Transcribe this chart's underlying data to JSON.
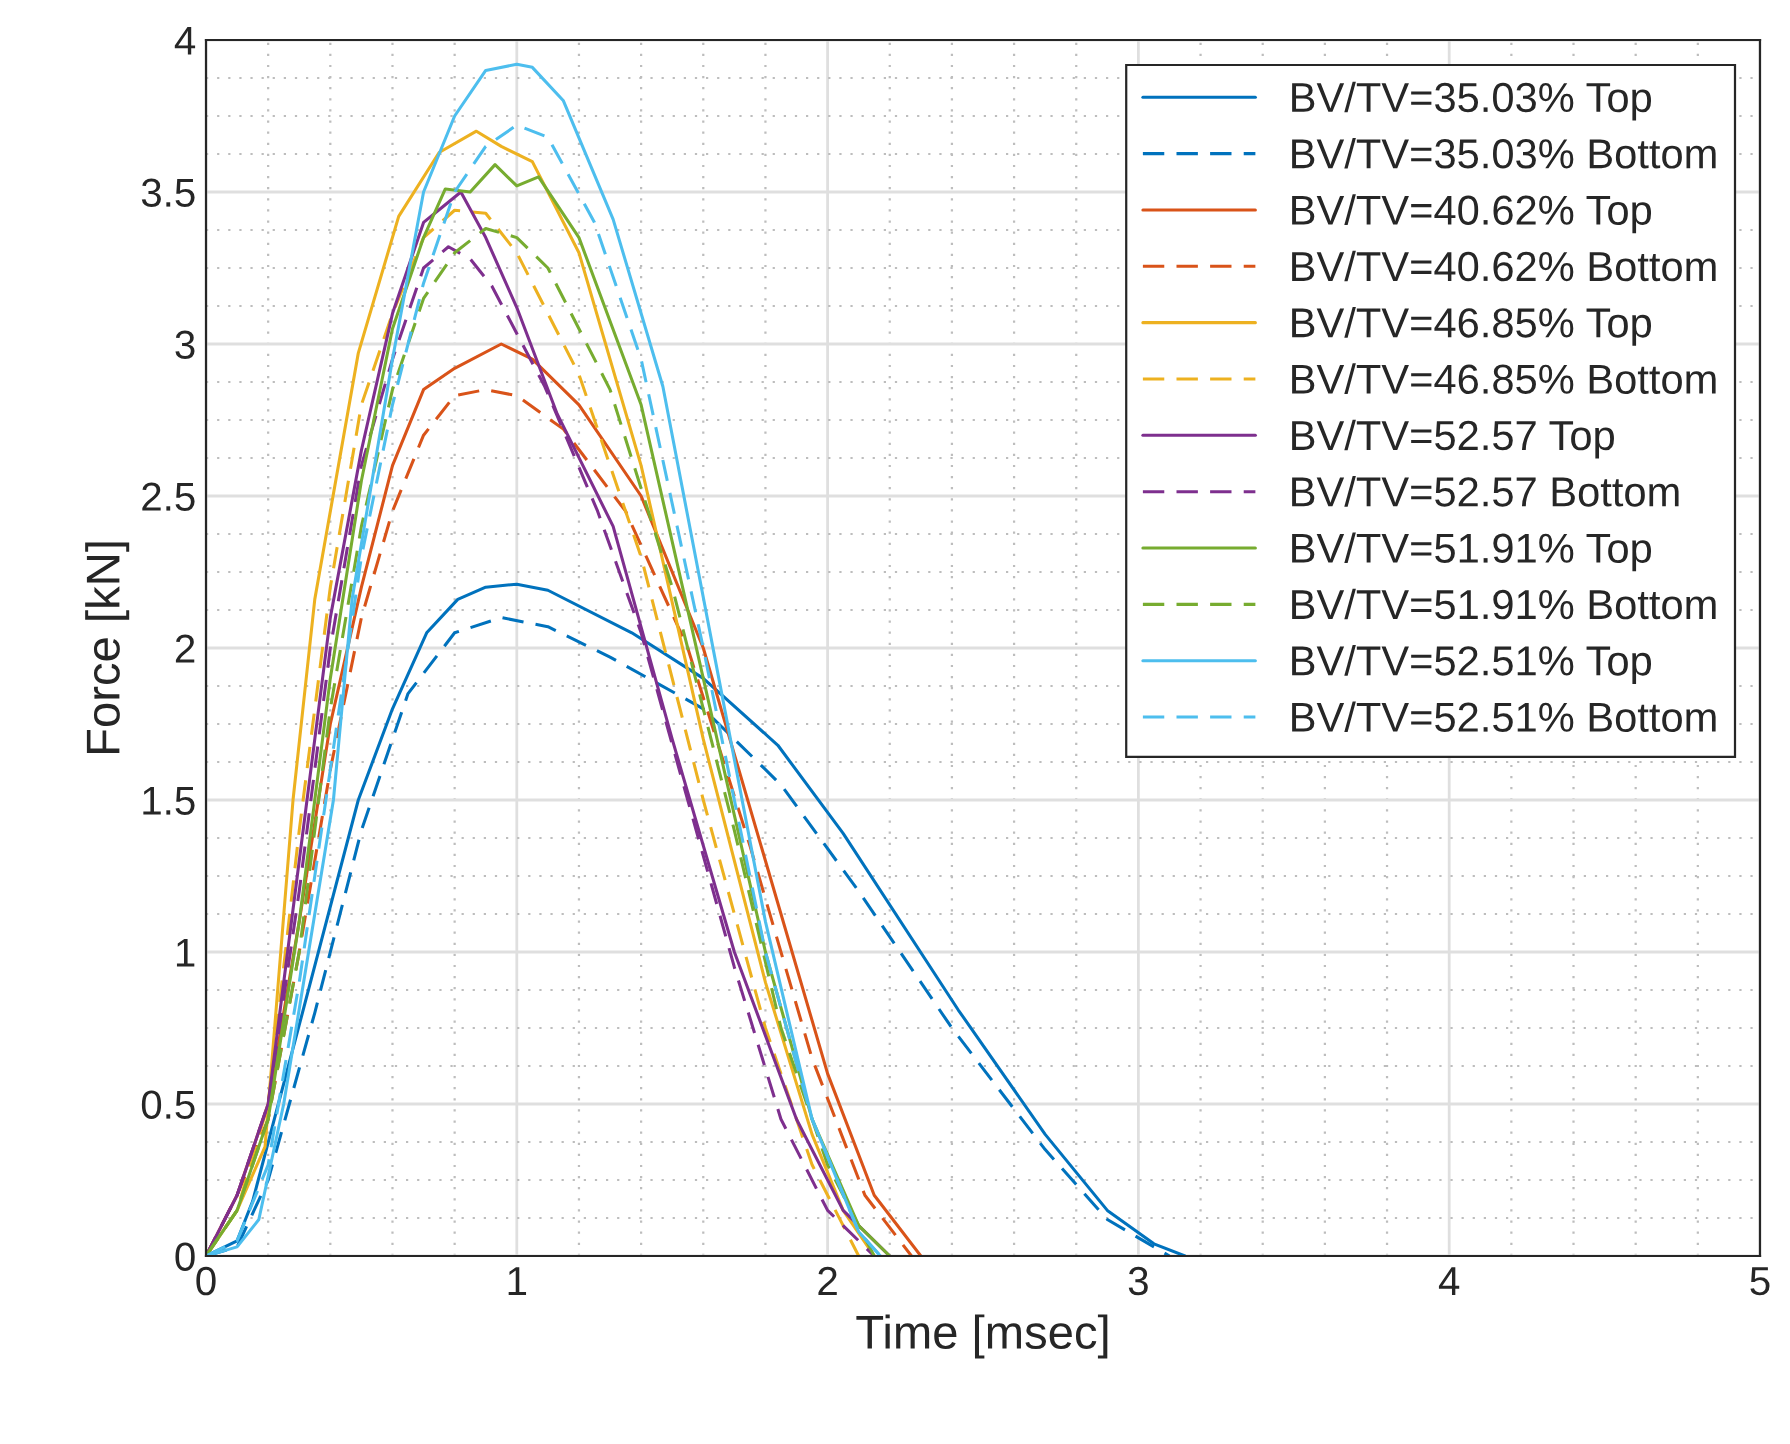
{
  "chart_data": {
    "type": "line",
    "xlabel": "Time [msec]",
    "ylabel": "Force [kN]",
    "xlim": [
      0,
      5
    ],
    "ylim": [
      0,
      4
    ],
    "xticks": [
      0,
      1,
      2,
      3,
      4,
      5
    ],
    "yticks": [
      0,
      0.5,
      1,
      1.5,
      2,
      2.5,
      3,
      3.5,
      4
    ],
    "grid": true,
    "legend": "top right",
    "series": [
      {
        "name": "BV/TV=35.03% Top",
        "color": "#0072bd",
        "line_style": "solid",
        "x": [
          0,
          0.1,
          0.15,
          0.3,
          0.49,
          0.6,
          0.71,
          0.81,
          0.9,
          1.0,
          1.1,
          1.37,
          1.6,
          1.84,
          2.05,
          2.42,
          2.7,
          2.9,
          3.05,
          3.15
        ],
        "values": [
          0,
          0.05,
          0.18,
          0.76,
          1.5,
          1.8,
          2.05,
          2.16,
          2.2,
          2.21,
          2.19,
          2.05,
          1.9,
          1.68,
          1.39,
          0.81,
          0.4,
          0.15,
          0.04,
          0
        ]
      },
      {
        "name": "BV/TV=35.03% Bottom",
        "color": "#0072bd",
        "line_style": "dashed",
        "x": [
          0,
          0.1,
          0.2,
          0.35,
          0.5,
          0.65,
          0.8,
          0.95,
          1.1,
          1.3,
          1.6,
          1.85,
          2.1,
          2.4,
          2.7,
          2.9,
          3.05,
          3.1
        ],
        "values": [
          0,
          0.03,
          0.25,
          0.8,
          1.4,
          1.85,
          2.05,
          2.1,
          2.07,
          1.97,
          1.8,
          1.55,
          1.2,
          0.75,
          0.35,
          0.12,
          0.03,
          0
        ]
      },
      {
        "name": "BV/TV=40.62% Top",
        "color": "#d95319",
        "line_style": "solid",
        "x": [
          0,
          0.1,
          0.2,
          0.3,
          0.4,
          0.5,
          0.6,
          0.7,
          0.8,
          0.95,
          1.05,
          1.2,
          1.4,
          1.6,
          1.8,
          2.0,
          2.15,
          2.3
        ],
        "values": [
          0,
          0.2,
          0.5,
          1.1,
          1.75,
          2.2,
          2.6,
          2.85,
          2.92,
          3.0,
          2.95,
          2.8,
          2.5,
          2.0,
          1.3,
          0.6,
          0.2,
          0
        ]
      },
      {
        "name": "BV/TV=40.62% Bottom",
        "color": "#d95319",
        "line_style": "dashed",
        "x": [
          0,
          0.1,
          0.2,
          0.3,
          0.4,
          0.5,
          0.6,
          0.7,
          0.8,
          0.9,
          1.0,
          1.15,
          1.35,
          1.55,
          1.75,
          1.95,
          2.12,
          2.27
        ],
        "values": [
          0,
          0.2,
          0.45,
          1.0,
          1.6,
          2.1,
          2.45,
          2.7,
          2.83,
          2.85,
          2.83,
          2.72,
          2.45,
          2.0,
          1.35,
          0.65,
          0.2,
          0
        ]
      },
      {
        "name": "BV/TV=46.85% Top",
        "color": "#edb120",
        "line_style": "solid",
        "x": [
          0,
          0.1,
          0.19,
          0.28,
          0.35,
          0.49,
          0.62,
          0.75,
          0.87,
          0.95,
          1.05,
          1.2,
          1.4,
          1.6,
          1.8,
          1.95,
          2.05,
          2.15
        ],
        "values": [
          0,
          0.15,
          0.36,
          1.5,
          2.16,
          2.97,
          3.42,
          3.63,
          3.7,
          3.65,
          3.6,
          3.3,
          2.6,
          1.7,
          0.9,
          0.4,
          0.15,
          0
        ]
      },
      {
        "name": "BV/TV=46.85% Bottom",
        "color": "#edb120",
        "line_style": "dashed",
        "x": [
          0,
          0.1,
          0.2,
          0.3,
          0.4,
          0.5,
          0.6,
          0.7,
          0.8,
          0.9,
          1.0,
          1.2,
          1.4,
          1.6,
          1.8,
          1.95,
          2.1
        ],
        "values": [
          0,
          0.15,
          0.5,
          1.4,
          2.2,
          2.8,
          3.1,
          3.35,
          3.44,
          3.43,
          3.3,
          2.9,
          2.3,
          1.5,
          0.75,
          0.3,
          0
        ]
      },
      {
        "name": "BV/TV=52.57 Top",
        "color": "#7e2f8e",
        "line_style": "solid",
        "x": [
          0,
          0.1,
          0.2,
          0.3,
          0.4,
          0.5,
          0.6,
          0.7,
          0.76,
          0.82,
          0.9,
          1.0,
          1.13,
          1.31,
          1.5,
          1.7,
          1.9,
          2.05,
          2.2
        ],
        "values": [
          0,
          0.2,
          0.5,
          1.3,
          2.1,
          2.65,
          3.1,
          3.4,
          3.45,
          3.5,
          3.35,
          3.12,
          2.77,
          2.4,
          1.7,
          1.0,
          0.45,
          0.15,
          0
        ]
      },
      {
        "name": "BV/TV=52.57 Bottom",
        "color": "#7e2f8e",
        "line_style": "dashed",
        "x": [
          0,
          0.1,
          0.2,
          0.3,
          0.4,
          0.5,
          0.6,
          0.7,
          0.78,
          0.85,
          0.92,
          1.09,
          1.26,
          1.4,
          1.55,
          1.7,
          1.85,
          2.0,
          2.15
        ],
        "values": [
          0,
          0.2,
          0.5,
          1.2,
          2.0,
          2.6,
          2.95,
          3.25,
          3.32,
          3.28,
          3.19,
          2.86,
          2.45,
          2.05,
          1.5,
          0.95,
          0.45,
          0.15,
          0
        ]
      },
      {
        "name": "BV/TV=51.91% Top",
        "color": "#77ac30",
        "line_style": "solid",
        "x": [
          0,
          0.1,
          0.2,
          0.3,
          0.4,
          0.5,
          0.6,
          0.7,
          0.77,
          0.85,
          0.93,
          1.0,
          1.07,
          1.2,
          1.4,
          1.6,
          1.8,
          1.95,
          2.1,
          2.2
        ],
        "values": [
          0,
          0.15,
          0.45,
          1.1,
          1.9,
          2.55,
          3.05,
          3.35,
          3.51,
          3.5,
          3.59,
          3.52,
          3.55,
          3.35,
          2.8,
          1.9,
          1.0,
          0.45,
          0.1,
          0
        ]
      },
      {
        "name": "BV/TV=51.91% Bottom",
        "color": "#77ac30",
        "line_style": "dashed",
        "x": [
          0,
          0.1,
          0.2,
          0.3,
          0.4,
          0.5,
          0.6,
          0.7,
          0.8,
          0.9,
          1.0,
          1.1,
          1.3,
          1.5,
          1.7,
          1.85,
          2.0,
          2.15
        ],
        "values": [
          0,
          0.15,
          0.45,
          1.0,
          1.8,
          2.4,
          2.85,
          3.15,
          3.3,
          3.38,
          3.35,
          3.25,
          2.85,
          2.2,
          1.4,
          0.75,
          0.3,
          0
        ]
      },
      {
        "name": "BV/TV=52.51% Top",
        "color": "#4dbeee",
        "line_style": "solid",
        "x": [
          0,
          0.1,
          0.17,
          0.25,
          0.33,
          0.41,
          0.47,
          0.6,
          0.7,
          0.8,
          0.9,
          1.0,
          1.05,
          1.15,
          1.31,
          1.47,
          1.65,
          1.8,
          1.95,
          2.1,
          2.17
        ],
        "values": [
          0,
          0.03,
          0.12,
          0.5,
          1.0,
          1.5,
          2.16,
          2.95,
          3.5,
          3.75,
          3.9,
          3.92,
          3.91,
          3.8,
          3.41,
          2.86,
          1.9,
          1.1,
          0.45,
          0.08,
          0
        ]
      },
      {
        "name": "BV/TV=52.51% Bottom",
        "color": "#4dbeee",
        "line_style": "dashed",
        "x": [
          0,
          0.1,
          0.2,
          0.3,
          0.4,
          0.5,
          0.6,
          0.7,
          0.8,
          0.9,
          1.0,
          1.1,
          1.25,
          1.4,
          1.6,
          1.8,
          1.95,
          2.1,
          2.17
        ],
        "values": [
          0,
          0.05,
          0.3,
          0.9,
          1.6,
          2.3,
          2.8,
          3.2,
          3.5,
          3.65,
          3.72,
          3.68,
          3.4,
          2.95,
          2.0,
          1.0,
          0.45,
          0.08,
          0
        ]
      }
    ]
  }
}
